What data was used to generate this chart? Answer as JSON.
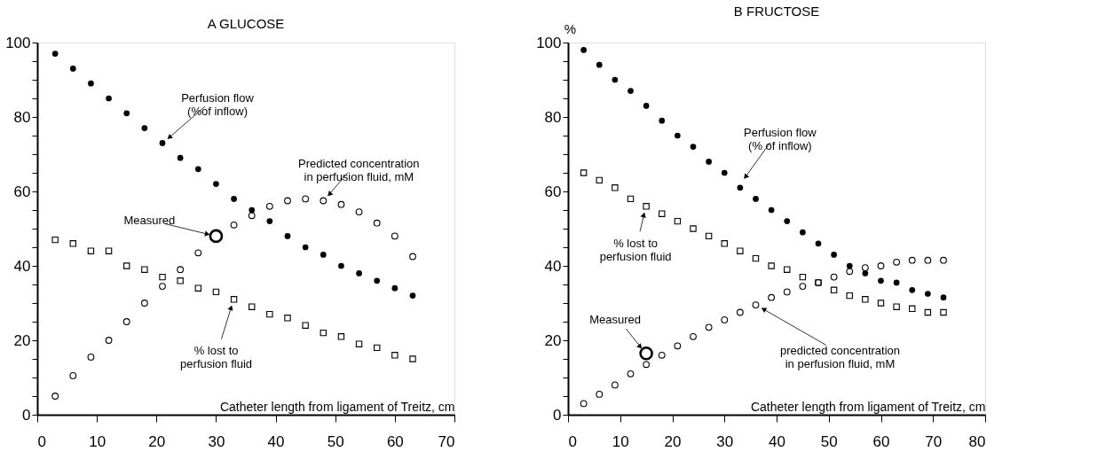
{
  "chart_data": [
    {
      "type": "scatter",
      "title": "A GLUCOSE",
      "xlabel": "Catheter length from ligament of Treitz,  cm",
      "x": [
        3,
        6,
        9,
        12,
        15,
        18,
        21,
        24,
        27,
        30,
        33,
        36,
        39,
        42,
        45,
        48,
        51,
        54,
        57,
        60,
        63
      ],
      "series": [
        {
          "color": "#000000",
          "marker": "circle",
          "values": [
            97,
            93,
            89,
            85,
            81,
            77,
            73,
            69,
            66,
            62,
            58,
            55,
            52,
            48,
            45,
            43,
            40,
            38,
            36,
            34,
            32
          ]
        },
        {
          "color": "#000000",
          "marker": "circle",
          "values": [
            5,
            10.5,
            15.5,
            20,
            25,
            30,
            34.5,
            39,
            43.5,
            null,
            51,
            53.5,
            56,
            57.5,
            58,
            57.5,
            56.5,
            54.5,
            51.5,
            48,
            42.5
          ]
        },
        {
          "color": "#000000",
          "marker": "square",
          "values": [
            47,
            46,
            44,
            44,
            40,
            39,
            37,
            36,
            34,
            33,
            31,
            29,
            27,
            26,
            24,
            22,
            21,
            19,
            18,
            16,
            15
          ]
        },
        {
          "type": "scatter",
          "color": "#000000",
          "marker": "circle",
          "x": [
            30
          ],
          "values": [
            48
          ]
        }
      ],
      "xlim": [
        0,
        70
      ],
      "xticks": [
        0,
        10,
        20,
        30,
        40,
        50,
        60,
        70
      ],
      "ylim": [
        0,
        100
      ],
      "yticks": [
        0,
        {
          "value": 5,
          "label": null
        },
        {
          "value": 10,
          "label": null
        },
        {
          "value": 15,
          "label": null
        },
        20,
        {
          "value": 25,
          "label": null
        },
        {
          "value": 30,
          "label": null
        },
        {
          "value": 35,
          "label": null
        },
        40,
        {
          "value": 45,
          "label": null
        },
        {
          "value": 50,
          "label": null
        },
        {
          "value": 55,
          "label": null
        },
        60,
        {
          "value": 65,
          "label": null
        },
        {
          "value": 70,
          "label": null
        },
        {
          "value": 75,
          "label": null
        },
        80,
        {
          "value": 85,
          "label": null
        },
        {
          "value": 90,
          "label": null
        },
        {
          "value": 95,
          "label": null
        },
        100
      ],
      "grid": false,
      "annotations": [
        {
          "text": "Perfusion flow\n(%of inflow)",
          "x": 21,
          "y": 73
        },
        {
          "text": "Predicted concentration\nin perfusion fluid, mM",
          "x": 48,
          "y": 57.5
        },
        {
          "text": "Measured",
          "x": 30,
          "y": 48
        },
        {
          "text": "% lost to\nperfusion fluid",
          "x": 33,
          "y": 31
        }
      ]
    },
    {
      "type": "scatter",
      "title": "B FRUCTOSE",
      "ylabel": "%",
      "xlabel": "Catheter length from ligament of Treitz,  cm",
      "x": [
        3,
        6,
        9,
        12,
        15,
        18,
        21,
        24,
        27,
        30,
        33,
        36,
        39,
        42,
        45,
        48,
        51,
        54,
        57,
        60,
        63,
        66,
        69,
        72
      ],
      "series": [
        {
          "color": "#000000",
          "marker": "circle",
          "values": [
            98,
            94,
            90,
            87,
            83,
            79,
            75,
            72,
            68,
            65,
            61,
            58,
            55,
            52,
            49,
            46,
            43,
            40,
            38,
            36,
            35.5,
            33.5,
            32.5,
            31.5
          ]
        },
        {
          "color": "#000000",
          "marker": "circle",
          "values": [
            3,
            5.5,
            8,
            11,
            13.5,
            16,
            18.5,
            21,
            23.5,
            25.5,
            27.5,
            29.5,
            31.5,
            33,
            34.5,
            35.5,
            37,
            38.5,
            39.5,
            40,
            41,
            41.5,
            41.5,
            41.5
          ]
        },
        {
          "color": "#000000",
          "marker": "square",
          "values": [
            65,
            63,
            61,
            58,
            56,
            54,
            52,
            50,
            48,
            46,
            44,
            42,
            40,
            39,
            37,
            35.5,
            33.5,
            32,
            31,
            30,
            29,
            28.5,
            27.5,
            27.5
          ]
        },
        {
          "type": "scatter",
          "color": "#000000",
          "marker": "circle",
          "x": [
            15
          ],
          "values": [
            16.5
          ]
        }
      ],
      "xlim": [
        0,
        80
      ],
      "xticks": [
        0,
        10,
        20,
        30,
        40,
        50,
        60,
        70,
        80
      ],
      "ylim": [
        0,
        100
      ],
      "yticks": [
        0,
        {
          "value": 5,
          "label": null
        },
        {
          "value": 10,
          "label": null
        },
        {
          "value": 15,
          "label": null
        },
        20,
        {
          "value": 25,
          "label": null
        },
        {
          "value": 30,
          "label": null
        },
        {
          "value": 35,
          "label": null
        },
        40,
        {
          "value": 45,
          "label": null
        },
        {
          "value": 50,
          "label": null
        },
        {
          "value": 55,
          "label": null
        },
        60,
        {
          "value": 65,
          "label": null
        },
        {
          "value": 70,
          "label": null
        },
        {
          "value": 75,
          "label": null
        },
        80,
        {
          "value": 85,
          "label": null
        },
        {
          "value": 90,
          "label": null
        },
        {
          "value": 95,
          "label": null
        },
        100
      ],
      "grid": false,
      "annotations": [
        {
          "text": "Perfusion flow\n(% of inflow)",
          "x": 33,
          "y": 62
        },
        {
          "text": "% lost to\nperfusion fluid",
          "x": 15,
          "y": 56
        },
        {
          "text": "Measured",
          "x": 15,
          "y": 16.5
        },
        {
          "text": "predicted concentration\nin perfusion fluid, mM",
          "x": 36,
          "y": 29.5
        }
      ]
    }
  ]
}
